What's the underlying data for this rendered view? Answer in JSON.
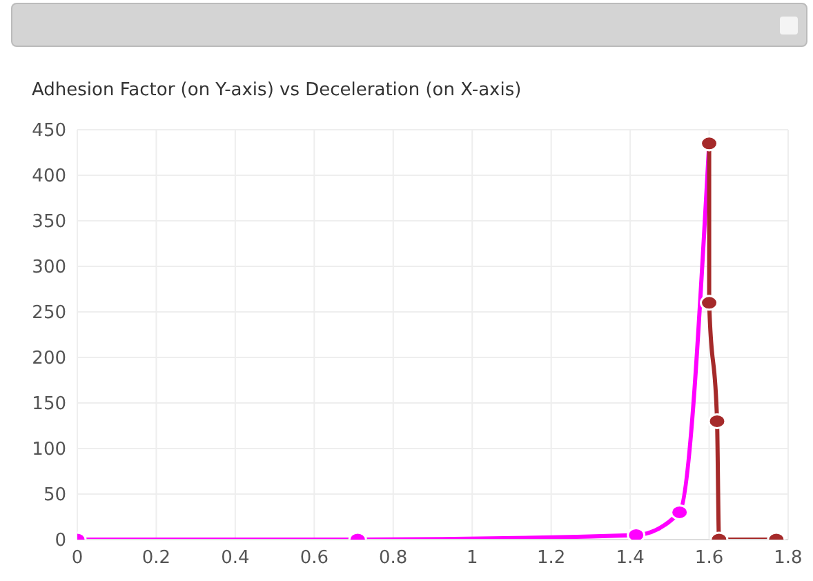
{
  "chart_data": {
    "type": "line",
    "title": "Adhesion Factor (on Y-axis) vs Deceleration (on X-axis)",
    "series": [
      {
        "color": "#ff00ff",
        "x": [
          0,
          0.71,
          1.415,
          1.525,
          1.6
        ],
        "values": [
          0,
          0,
          5,
          30,
          435
        ]
      },
      {
        "color": "#a52a2a",
        "x": [
          1.6,
          1.6,
          1.62,
          1.625,
          1.77
        ],
        "values": [
          435,
          260,
          130,
          0,
          0
        ]
      }
    ],
    "xlim": [
      0,
      1.8
    ],
    "xticks": [
      0,
      0.2,
      0.4,
      0.6,
      0.8,
      1,
      1.2,
      1.4,
      1.6,
      1.8
    ],
    "ylim": [
      0,
      450
    ],
    "yticks": [
      0,
      50,
      100,
      150,
      200,
      250,
      300,
      350,
      400,
      450
    ],
    "grid": true,
    "marker": "circle",
    "line_style": "solid"
  }
}
